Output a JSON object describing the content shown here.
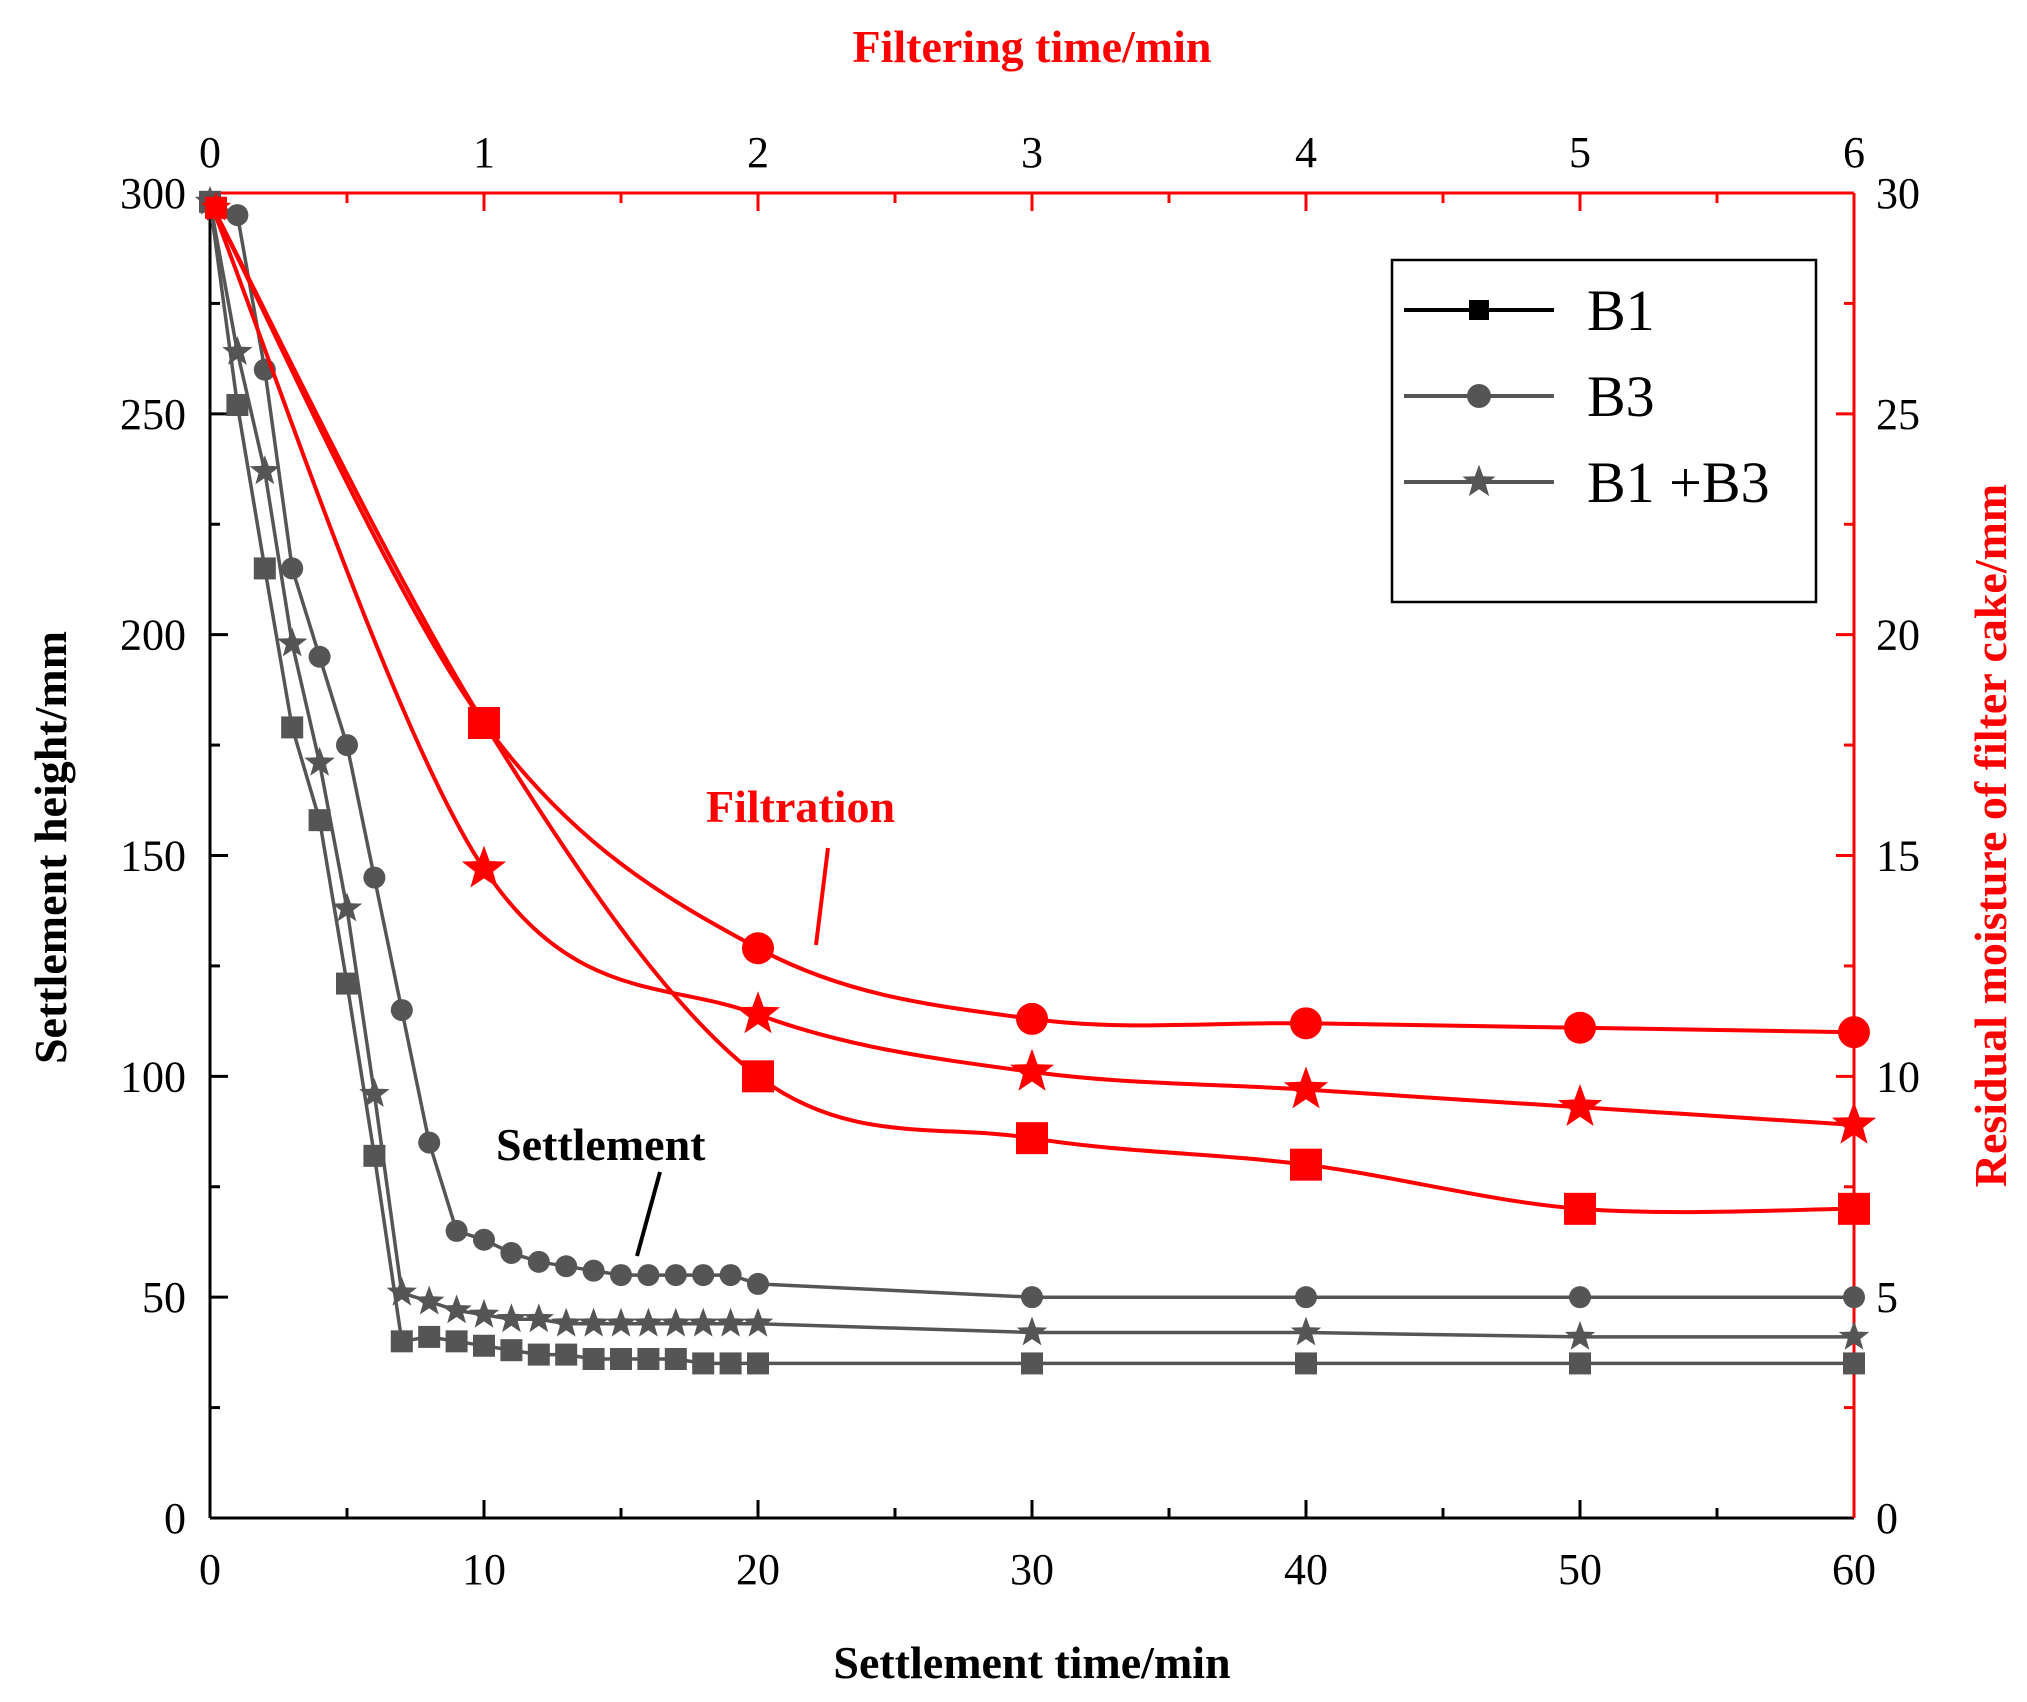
{
  "chart_data": {
    "type": "line",
    "colors": {
      "settlement": "#555555",
      "filtration": "#ff0000",
      "axis_black": "#000000"
    },
    "axes": {
      "bottom": {
        "label": "Settlement time/min",
        "range": [
          0,
          60
        ],
        "ticks": [
          "0",
          "10",
          "20",
          "30",
          "40",
          "50",
          "60"
        ]
      },
      "left": {
        "label": "Settlement height/mm",
        "range": [
          0,
          300
        ],
        "ticks": [
          "0",
          "50",
          "100",
          "150",
          "200",
          "250",
          "300"
        ]
      },
      "top": {
        "label": "Filtering time/min",
        "range": [
          0,
          6
        ],
        "ticks": [
          "0",
          "1",
          "2",
          "3",
          "4",
          "5",
          "6"
        ]
      },
      "right": {
        "label": "Residual moisture of filter cake/mm",
        "range": [
          0,
          30
        ],
        "ticks": [
          "0",
          "5",
          "10",
          "15",
          "20",
          "25",
          "30"
        ]
      }
    },
    "legend": {
      "position": "top-right",
      "entries": [
        {
          "label": "B1",
          "marker": "square"
        },
        {
          "label": "B3",
          "marker": "circle"
        },
        {
          "label": "B1 +B3",
          "marker": "star"
        }
      ]
    },
    "annotations": {
      "filtration": "Filtration",
      "settlement": "Settlement"
    },
    "settlement_series": [
      {
        "name": "B1",
        "marker": "square",
        "x": [
          0,
          1,
          2,
          3,
          4,
          5,
          6,
          7,
          8,
          9,
          10,
          11,
          12,
          13,
          14,
          15,
          16,
          17,
          18,
          19,
          20,
          30,
          40,
          50,
          60
        ],
        "y": [
          298,
          252,
          215,
          179,
          158,
          121,
          82,
          40,
          41,
          40,
          39,
          38,
          37,
          37,
          36,
          36,
          36,
          36,
          35,
          35,
          35,
          35,
          35,
          35,
          35
        ]
      },
      {
        "name": "B3",
        "marker": "circle",
        "x": [
          0,
          1,
          2,
          3,
          4,
          5,
          6,
          7,
          8,
          9,
          10,
          11,
          12,
          13,
          14,
          15,
          16,
          17,
          18,
          19,
          20,
          30,
          40,
          50,
          60
        ],
        "y": [
          298,
          295,
          260,
          215,
          195,
          175,
          145,
          115,
          85,
          65,
          63,
          60,
          58,
          57,
          56,
          55,
          55,
          55,
          55,
          55,
          53,
          50,
          50,
          50,
          50
        ]
      },
      {
        "name": "B1 +B3",
        "marker": "star",
        "x": [
          0,
          1,
          2,
          3,
          4,
          5,
          6,
          7,
          8,
          9,
          10,
          11,
          12,
          13,
          14,
          15,
          16,
          17,
          18,
          19,
          20,
          30,
          40,
          50,
          60
        ],
        "y": [
          298,
          264,
          237,
          198,
          171,
          138,
          96,
          51,
          49,
          47,
          46,
          45,
          45,
          44,
          44,
          44,
          44,
          44,
          44,
          44,
          44,
          42,
          42,
          41,
          41
        ]
      }
    ],
    "filtration_series": [
      {
        "name": "B1",
        "marker": "square",
        "x": [
          0,
          1,
          2,
          3,
          4,
          5,
          6
        ],
        "y": [
          29.8,
          18.0,
          10.0,
          8.6,
          8.0,
          7.0,
          7.0
        ]
      },
      {
        "name": "B3",
        "marker": "circle",
        "x": [
          0,
          1,
          2,
          3,
          4,
          5,
          6
        ],
        "y": [
          29.8,
          18.0,
          12.9,
          11.3,
          11.2,
          11.1,
          11.0
        ]
      },
      {
        "name": "B1 +B3",
        "marker": "star",
        "x": [
          0,
          1,
          2,
          3,
          4,
          5,
          6
        ],
        "y": [
          29.8,
          14.7,
          11.4,
          10.1,
          9.7,
          9.3,
          8.9
        ]
      }
    ]
  }
}
